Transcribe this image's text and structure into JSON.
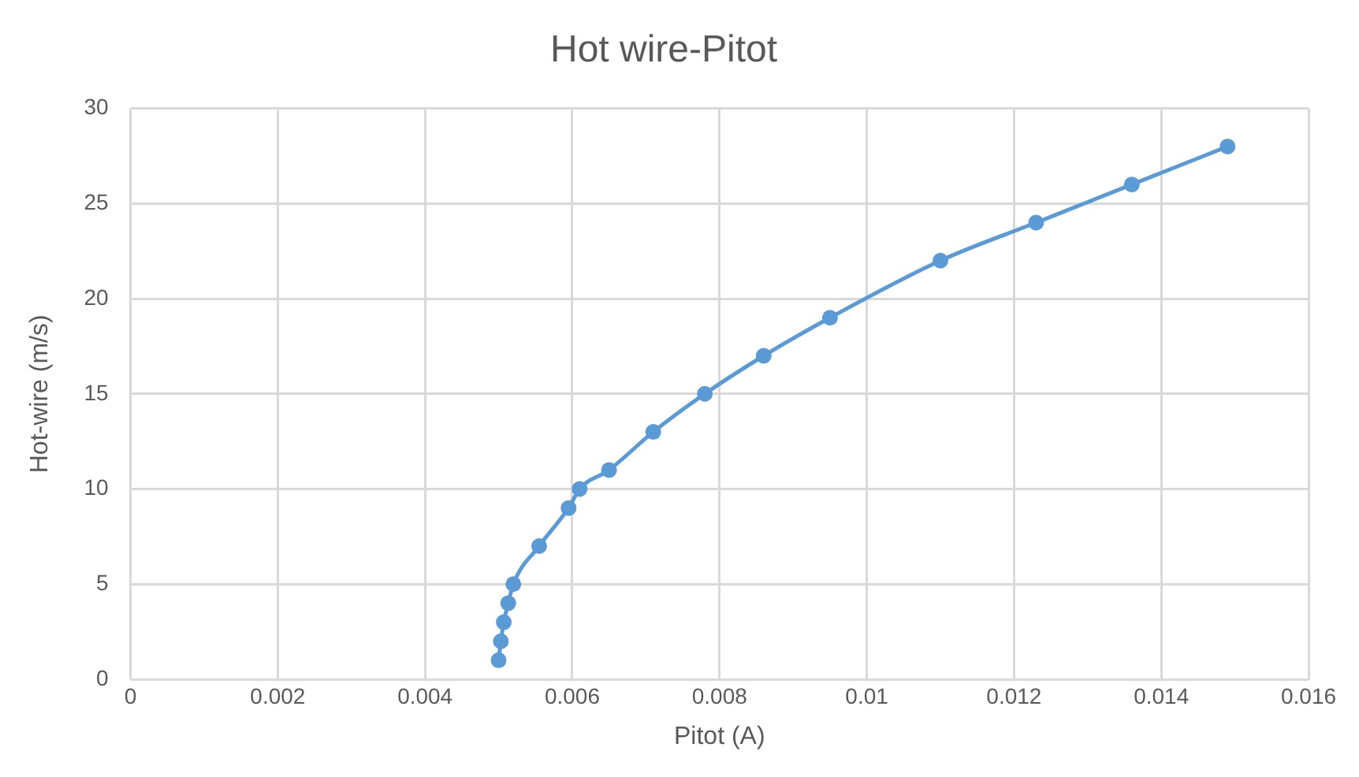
{
  "chart_data": {
    "type": "line",
    "title": "Hot wire-Pitot",
    "xlabel": "Pitot (A)",
    "ylabel": "Hot-wire (m/s)",
    "x": [
      0.005,
      0.00503,
      0.00507,
      0.00513,
      0.0052,
      0.00555,
      0.00595,
      0.0061,
      0.0065,
      0.0071,
      0.0078,
      0.0086,
      0.0095,
      0.011,
      0.0123,
      0.0136,
      0.0149
    ],
    "series": [
      {
        "color": "#5b9bd5",
        "values": [
          1,
          2,
          3,
          4,
          5,
          7,
          9,
          10,
          11,
          13,
          15,
          17,
          19,
          22,
          24,
          26,
          28
        ]
      }
    ],
    "xlim": [
      0,
      0.016
    ],
    "xticks": [
      0,
      0.002,
      0.004,
      0.006,
      0.008,
      0.01,
      0.012,
      0.014,
      0.016
    ],
    "ylim": [
      0,
      30
    ],
    "yticks": [
      0,
      5,
      10,
      15,
      20,
      25,
      30
    ],
    "grid": true,
    "legend": false,
    "marker": "circle",
    "line_style": "solid"
  }
}
